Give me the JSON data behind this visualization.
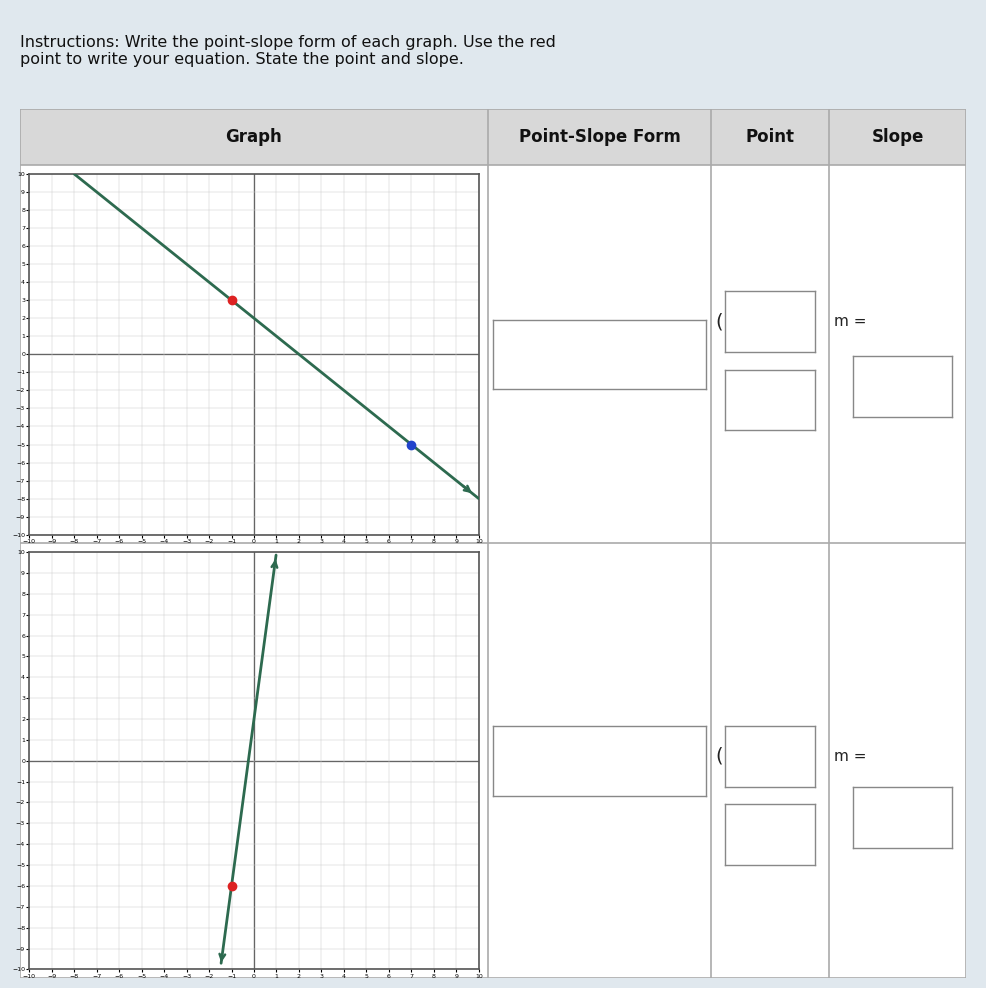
{
  "title_line1": "Instructions: Write the point-slope form of each graph. Use the red",
  "title_line2": "point to write your equation. State the point and slope.",
  "header_graph": "Graph",
  "header_psf": "Point-Slope Form",
  "header_point": "Point",
  "header_slope": "Slope",
  "graph1": {
    "xlim": [
      -10,
      10
    ],
    "ylim": [
      -10,
      10
    ],
    "line_color": "#2d6a4f",
    "slope": -1,
    "intercept": 2,
    "red_point": [
      -1,
      3
    ],
    "blue_point": [
      7,
      -5
    ]
  },
  "graph2": {
    "xlim": [
      -10,
      10
    ],
    "ylim": [
      -10,
      10
    ],
    "line_color": "#2d6a4f",
    "slope": 8,
    "intercept": 2,
    "red_point": [
      -1,
      -6
    ]
  },
  "bg_color": "#e0e8ee",
  "table_bg": "#f2f2f2",
  "grid_color": "#cccccc",
  "axis_color": "#333333",
  "table_border_color": "#aaaaaa",
  "header_bg": "#d8d8d8",
  "cell_bg": "#ffffff",
  "box_border": "#888888"
}
